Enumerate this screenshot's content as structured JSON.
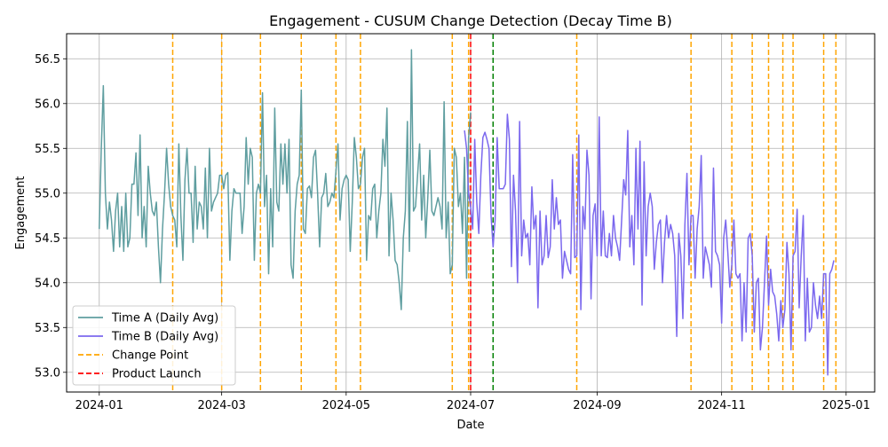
{
  "chart_data": {
    "type": "line",
    "title": "Engagement - CUSUM Change Detection (Decay Time B)",
    "xlabel": "Date",
    "ylabel": "Engagement",
    "x_axis": "date",
    "xlim": [
      "2023-12-16",
      "2025-01-15"
    ],
    "ylim": [
      52.78,
      56.78
    ],
    "x_ticks": [
      "2024-01",
      "2024-03",
      "2024-05",
      "2024-07",
      "2024-09",
      "2024-11",
      "2025-01"
    ],
    "y_ticks": [
      53.0,
      53.5,
      54.0,
      54.5,
      55.0,
      55.5,
      56.0,
      56.5
    ],
    "grid": true,
    "legend_position": "lower-left",
    "legend": [
      "Time A (Daily Avg)",
      "Time B (Daily Avg)",
      "Change Point",
      "Product Launch"
    ],
    "series": [
      {
        "name": "Time A (Daily Avg)",
        "color": "#5f9ea0",
        "x_start": "2024-01-01",
        "x_step_days": 1,
        "values": [
          54.6,
          55.5,
          56.2,
          55.0,
          54.6,
          54.9,
          54.7,
          54.35,
          54.8,
          55.0,
          54.4,
          54.85,
          54.35,
          55.0,
          54.4,
          54.5,
          55.1,
          55.1,
          55.45,
          54.75,
          55.65,
          54.5,
          54.85,
          54.4,
          55.3,
          55.0,
          54.8,
          54.75,
          54.9,
          54.4,
          54.0,
          54.6,
          55.0,
          55.5,
          55.1,
          54.85,
          54.75,
          54.7,
          54.4,
          55.55,
          54.75,
          54.25,
          55.15,
          55.5,
          55.0,
          55.0,
          54.45,
          55.3,
          54.6,
          54.9,
          54.85,
          54.6,
          55.28,
          54.5,
          55.5,
          54.8,
          54.9,
          54.95,
          55.0,
          55.2,
          55.2,
          55.05,
          55.2,
          55.23,
          54.25,
          54.8,
          55.05,
          55.0,
          55.0,
          55.0,
          54.55,
          54.85,
          55.62,
          55.1,
          55.5,
          55.4,
          54.25,
          55.0,
          55.1,
          55.0,
          56.12,
          54.85,
          55.2,
          54.1,
          55.05,
          54.4,
          55.95,
          54.9,
          54.8,
          55.55,
          55.1,
          55.55,
          55.0,
          55.6,
          54.2,
          54.05,
          54.8,
          55.1,
          55.2,
          56.15,
          54.6,
          54.55,
          55.05,
          55.08,
          54.95,
          55.4,
          55.48,
          55.0,
          54.4,
          54.95,
          55.0,
          55.22,
          54.85,
          54.9,
          55.0,
          54.95,
          55.25,
          55.55,
          54.7,
          55.05,
          55.15,
          55.2,
          55.15,
          54.35,
          54.9,
          55.62,
          55.4,
          55.05,
          55.1,
          55.4,
          55.5,
          54.25,
          54.75,
          54.7,
          55.05,
          55.1,
          54.5,
          54.8,
          55.0,
          55.6,
          55.3,
          55.95,
          54.3,
          55.0,
          54.7,
          54.25,
          54.2,
          54.0,
          53.7,
          54.5,
          54.8,
          55.8,
          54.35,
          56.6,
          54.8,
          54.85,
          55.2,
          55.55,
          54.7,
          55.2,
          54.5,
          54.95,
          55.48,
          54.8,
          54.75,
          54.85,
          54.95,
          54.85,
          54.6,
          56.02,
          54.5,
          54.9,
          54.1,
          54.2,
          55.5,
          55.4,
          54.85,
          55.0,
          54.55,
          55.4,
          54.05,
          55.62,
          55.9
        ],
        "values_after": "Time B"
      },
      {
        "name": "Time B (Daily Avg)",
        "color": "#7b68ee",
        "x_start": "2024-06-28",
        "x_step_days": 1,
        "values": [
          55.7,
          55.5,
          55.0,
          54.85,
          54.6,
          55.6,
          54.9,
          54.55,
          55.2,
          55.62,
          55.68,
          55.6,
          55.5,
          54.75,
          54.4,
          54.7,
          55.62,
          55.05,
          55.05,
          55.05,
          55.1,
          55.88,
          55.6,
          54.18,
          55.2,
          54.8,
          54.0,
          55.8,
          54.3,
          54.7,
          54.5,
          54.55,
          54.2,
          55.07,
          54.6,
          54.75,
          53.72,
          54.8,
          54.2,
          54.3,
          54.75,
          54.28,
          54.4,
          55.15,
          54.6,
          54.95,
          54.65,
          54.7,
          54.05,
          54.35,
          54.25,
          54.15,
          54.1,
          55.43,
          54.28,
          54.3,
          55.65,
          53.7,
          54.85,
          54.6,
          55.48,
          55.2,
          53.82,
          54.75,
          54.88,
          54.3,
          55.85,
          54.3,
          54.8,
          54.3,
          54.28,
          54.55,
          54.3,
          54.75,
          54.5,
          54.4,
          54.25,
          54.7,
          55.15,
          54.98,
          55.7,
          54.4,
          54.75,
          54.2,
          55.5,
          54.6,
          55.58,
          53.75,
          55.35,
          54.3,
          54.85,
          55.0,
          54.85,
          54.15,
          54.45,
          54.65,
          54.7,
          54.0,
          54.45,
          54.75,
          54.5,
          54.65,
          54.55,
          54.3,
          53.4,
          54.55,
          54.3,
          53.6,
          54.65,
          55.22,
          54.2,
          54.75,
          54.75,
          54.05,
          54.6,
          54.85,
          55.42,
          54.05,
          54.4,
          54.3,
          54.2,
          53.95,
          55.28,
          54.35,
          54.3,
          54.2,
          53.55,
          54.5,
          54.7,
          54.35,
          53.95,
          54.2,
          54.7,
          54.1,
          54.05,
          54.1,
          53.35,
          54.0,
          53.45,
          54.5,
          54.55,
          54.3,
          53.45,
          54.0,
          54.05,
          53.25,
          53.5,
          54.0,
          54.52,
          53.75,
          54.15,
          53.9,
          53.85,
          53.65,
          53.35,
          53.8,
          53.5,
          53.7,
          54.45,
          54.1,
          53.25,
          54.3,
          54.35,
          54.82,
          53.72,
          54.3,
          54.75,
          53.35,
          54.05,
          53.45,
          53.5,
          54.0,
          53.75,
          53.6,
          53.85,
          53.6,
          54.1,
          54.1,
          52.97,
          54.1,
          54.15,
          54.25
        ]
      }
    ],
    "change_points": {
      "name": "Change Point",
      "color": "#ffa500",
      "style": "dashed",
      "dates": [
        "2024-02-06",
        "2024-03-01",
        "2024-03-20",
        "2024-04-09",
        "2024-04-26",
        "2024-05-08",
        "2024-06-22",
        "2024-06-30",
        "2024-08-22",
        "2024-10-17",
        "2024-11-06",
        "2024-11-16",
        "2024-11-24",
        "2024-12-01",
        "2024-12-06",
        "2024-12-21",
        "2024-12-27"
      ]
    },
    "product_launch": {
      "name": "Product Launch",
      "color": "#ff0000",
      "style": "dashed",
      "date": "2024-07-01"
    },
    "green_marker": {
      "color": "#008000",
      "style": "dashed",
      "date": "2024-07-12"
    }
  }
}
